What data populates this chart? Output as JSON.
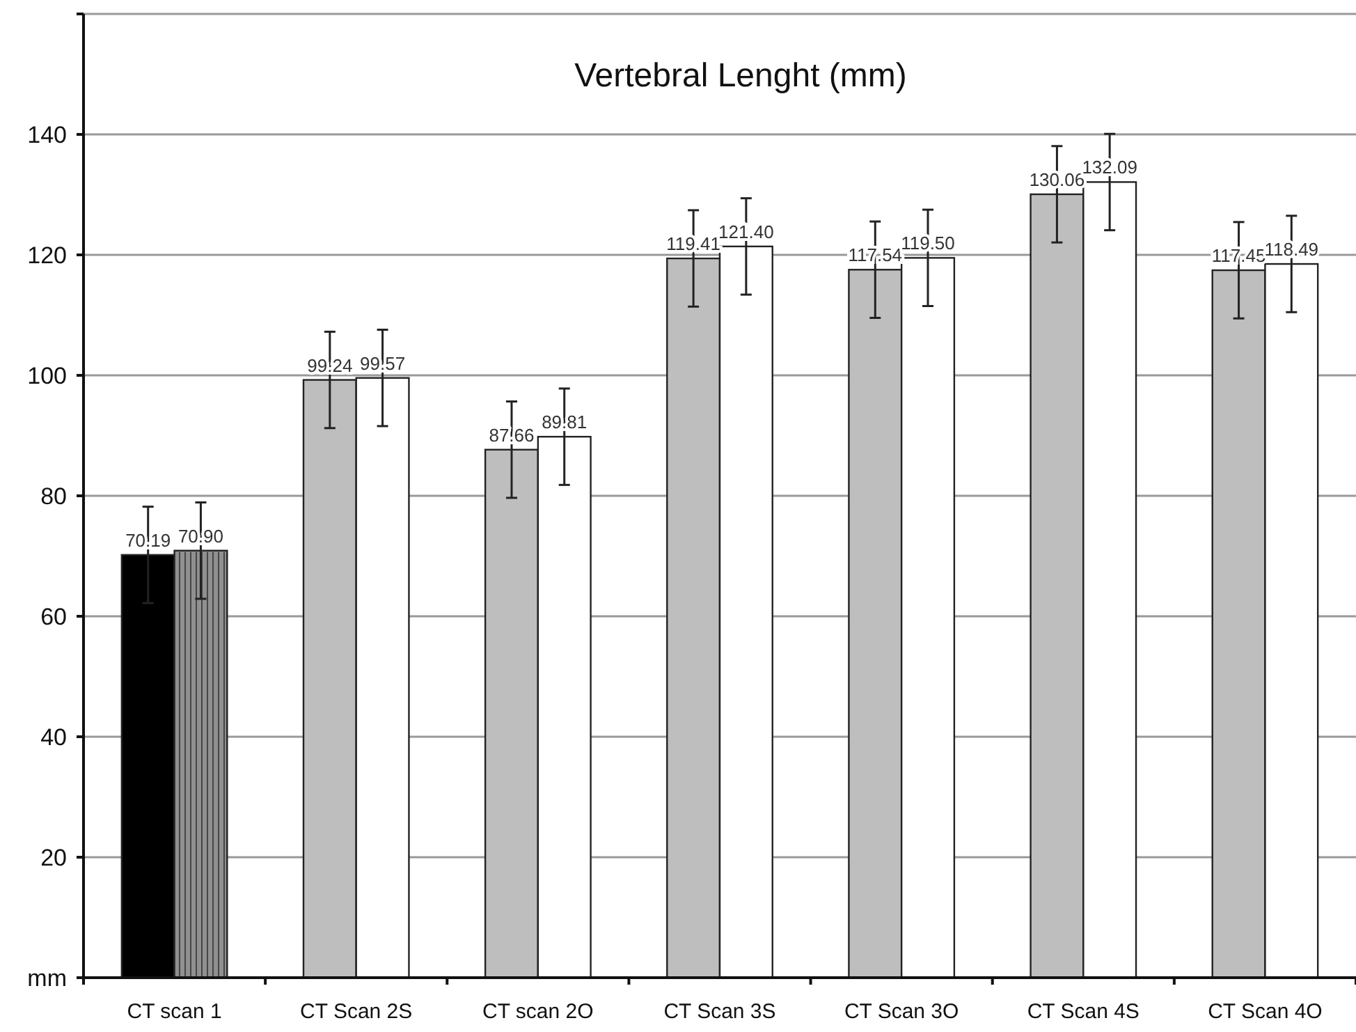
{
  "chart_data": {
    "type": "bar",
    "title": "Vertebral Lenght (mm)",
    "categories": [
      "CT scan 1",
      "CT Scan 2S",
      "CT scan 2O",
      "CT Scan 3S",
      "CT Scan 3O",
      "CT Scan 4S",
      "CT Scan 4O"
    ],
    "series": [
      {
        "colors": [
          "#000000",
          "#bebebe",
          "#bebebe",
          "#bebebe",
          "#bebebe",
          "#bebebe",
          "#bebebe"
        ],
        "values": [
          70.19,
          99.24,
          87.66,
          119.41,
          117.54,
          130.06,
          117.45
        ],
        "errors": [
          8,
          8,
          8,
          8,
          8,
          8,
          8
        ],
        "value_labels": [
          "70.19",
          "99.24",
          "87.66",
          "119.41",
          "117.54",
          "130.06",
          "117.45"
        ]
      },
      {
        "colors": [
          "#909090",
          "#ffffff",
          "#ffffff",
          "#ffffff",
          "#ffffff",
          "#ffffff",
          "#ffffff"
        ],
        "values": [
          70.9,
          99.57,
          89.81,
          121.4,
          119.5,
          132.09,
          118.49
        ],
        "errors": [
          8,
          8,
          8,
          8,
          8,
          8,
          8
        ],
        "value_labels": [
          "70.90",
          "99.57",
          "89.81",
          "121.40",
          "119.50",
          "132.09",
          "118.49"
        ]
      }
    ],
    "ylim": [
      0,
      160
    ],
    "yticks": [
      {
        "value": 0,
        "label": "mm"
      },
      20,
      40,
      60,
      80,
      100,
      120,
      140,
      {
        "value": 160,
        "label": null
      }
    ],
    "grid": "y"
  }
}
